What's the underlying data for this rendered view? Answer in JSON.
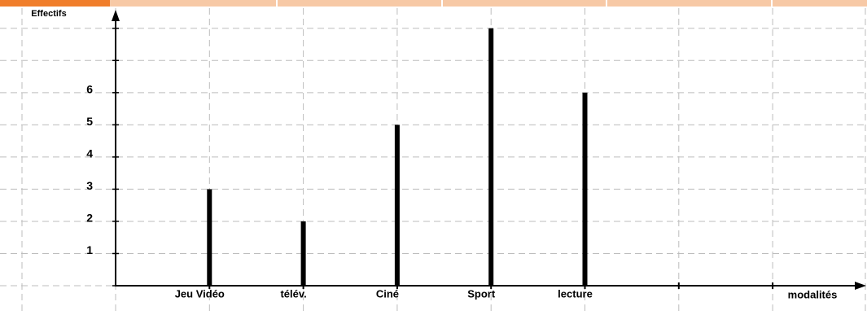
{
  "chart_data": {
    "type": "bar",
    "y_label": "Effectifs",
    "x_label": "modalités",
    "categories": [
      "Jeu Vidéo",
      "télév.",
      "Ciné",
      "Sport",
      "lecture",
      null,
      null
    ],
    "values": [
      3,
      2,
      5,
      8,
      6,
      null,
      null
    ],
    "color": "#000000",
    "ylim": [
      0,
      8.5
    ],
    "yticks": [
      1,
      2,
      3,
      4,
      5,
      6
    ],
    "ygrid": [
      0,
      1,
      2,
      3,
      4,
      5,
      6,
      7,
      8
    ],
    "grid": true
  }
}
